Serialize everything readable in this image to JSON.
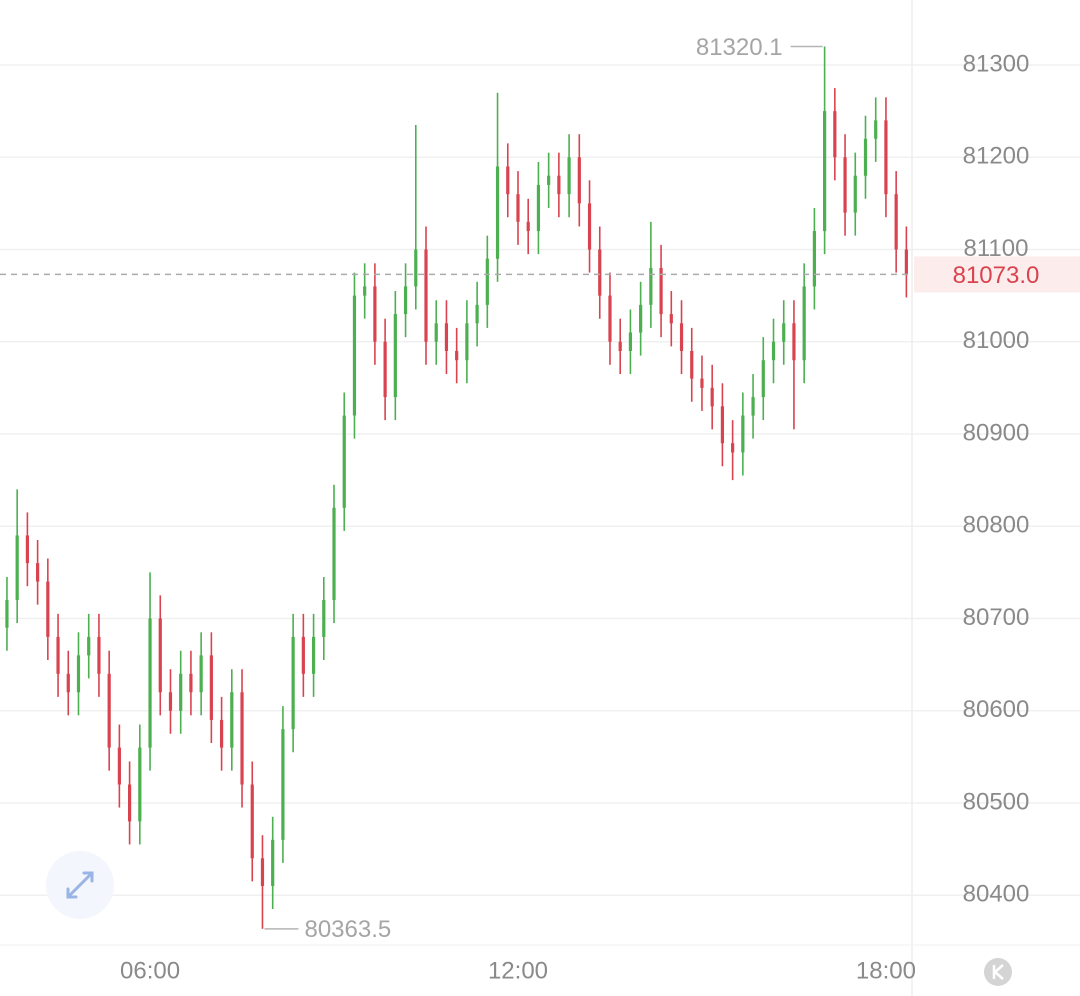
{
  "chart_data": {
    "type": "candlestick",
    "x": [
      220,
      230,
      240,
      250,
      260,
      270,
      280,
      290,
      300,
      310,
      320,
      330,
      340,
      350,
      360,
      370,
      380,
      390,
      400,
      410,
      420,
      430,
      440,
      450,
      460,
      470,
      480,
      490,
      500,
      510,
      520,
      530,
      540,
      550,
      560,
      570,
      580,
      590,
      600,
      610,
      620,
      630,
      640,
      650,
      660,
      670,
      680,
      690,
      700,
      710,
      720,
      730,
      740,
      750,
      760,
      770,
      780,
      790,
      800,
      810,
      820,
      830,
      840,
      850,
      860,
      870,
      880,
      890,
      900,
      910,
      920,
      930,
      940,
      950,
      960,
      970,
      980,
      990,
      1000,
      1010,
      1020,
      1030,
      1040,
      1050,
      1060,
      1070,
      1080,
      1090,
      1100
    ],
    "open": [
      80690,
      80720,
      80790,
      80760,
      80740,
      80680,
      80640,
      80620,
      80660,
      80680,
      80640,
      80560,
      80520,
      80480,
      80560,
      80700,
      80620,
      80600,
      80640,
      80620,
      80660,
      80590,
      80560,
      80620,
      80520,
      80440,
      80410,
      80460,
      80580,
      80680,
      80640,
      80680,
      80720,
      80820,
      80920,
      81050,
      81060,
      81000,
      80940,
      81030,
      81060,
      81100,
      81000,
      81020,
      80990,
      80980,
      81020,
      81040,
      81090,
      81190,
      81160,
      81130,
      81120,
      81170,
      81180,
      81160,
      81200,
      81150,
      81100,
      81050,
      81000,
      80990,
      81010,
      81040,
      81080,
      81030,
      81020,
      80990,
      80960,
      80950,
      80930,
      80890,
      80880,
      80920,
      80940,
      80980,
      81000,
      81020,
      80980,
      81060,
      81120,
      81250,
      81200,
      81140,
      81180,
      81220,
      81240,
      81160,
      81100
    ],
    "high": [
      80745,
      80840,
      80815,
      80785,
      80765,
      80705,
      80665,
      80685,
      80705,
      80705,
      80665,
      80585,
      80545,
      80585,
      80750,
      80725,
      80645,
      80665,
      80665,
      80685,
      80685,
      80615,
      80645,
      80645,
      80545,
      80465,
      80485,
      80605,
      80705,
      80705,
      80705,
      80745,
      80845,
      80945,
      81075,
      81085,
      81085,
      81025,
      81055,
      81085,
      81235,
      81125,
      81045,
      81045,
      81015,
      81045,
      81065,
      81115,
      81270,
      81215,
      81185,
      81155,
      81195,
      81205,
      81205,
      81225,
      81225,
      81175,
      81125,
      81075,
      81025,
      81035,
      81065,
      81130,
      81105,
      81055,
      81045,
      81015,
      80985,
      80975,
      80955,
      80915,
      80945,
      80965,
      81005,
      81025,
      81045,
      81045,
      81085,
      81145,
      81320.1,
      81275,
      81225,
      81205,
      81245,
      81265,
      81265,
      81185,
      81125
    ],
    "low": [
      80665,
      80695,
      80735,
      80715,
      80655,
      80615,
      80595,
      80595,
      80635,
      80615,
      80535,
      80495,
      80455,
      80455,
      80535,
      80595,
      80575,
      80575,
      80595,
      80595,
      80565,
      80535,
      80535,
      80495,
      80415,
      80363.5,
      80385,
      80435,
      80555,
      80615,
      80615,
      80655,
      80695,
      80795,
      80895,
      81025,
      80975,
      80915,
      80915,
      81005,
      81035,
      80975,
      80975,
      80965,
      80955,
      80955,
      80995,
      81015,
      81065,
      81135,
      81105,
      81095,
      81095,
      81145,
      81135,
      81135,
      81125,
      81075,
      81025,
      80975,
      80965,
      80965,
      80985,
      81015,
      81005,
      80995,
      80965,
      80935,
      80925,
      80905,
      80865,
      80850,
      80855,
      80895,
      80915,
      80955,
      80975,
      80905,
      80955,
      81035,
      81095,
      81175,
      81115,
      81115,
      81155,
      81195,
      81135,
      81075,
      81048
    ],
    "close": [
      80720,
      80790,
      80760,
      80740,
      80680,
      80640,
      80620,
      80660,
      80680,
      80640,
      80560,
      80520,
      80480,
      80560,
      80700,
      80620,
      80600,
      80640,
      80620,
      80660,
      80590,
      80560,
      80620,
      80520,
      80440,
      80410,
      80460,
      80580,
      80680,
      80640,
      80680,
      80720,
      80820,
      80920,
      81050,
      81060,
      81000,
      80940,
      81030,
      81060,
      81100,
      81000,
      81020,
      80990,
      80980,
      81020,
      81040,
      81090,
      81190,
      81160,
      81130,
      81120,
      81170,
      81180,
      81160,
      81200,
      81150,
      81100,
      81050,
      81000,
      80990,
      81010,
      81040,
      81080,
      81030,
      81020,
      80990,
      80960,
      80950,
      80930,
      80890,
      80880,
      80920,
      80940,
      80980,
      81000,
      81020,
      80980,
      81060,
      81120,
      81250,
      81200,
      81140,
      81180,
      81220,
      81240,
      81160,
      81100,
      81073.0
    ],
    "up_color": "#4caf50",
    "down_color": "#d9434f",
    "xlim": [
      213.2,
      1105.5
    ],
    "xticks": [
      {
        "value": 360,
        "label": "06:00"
      },
      {
        "value": 720,
        "label": "12:00"
      },
      {
        "value": 1080,
        "label": "18:00"
      }
    ],
    "ylim": [
      80346,
      81370.5
    ],
    "yticks": [
      80400,
      80500,
      80600,
      80700,
      80800,
      80900,
      81000,
      81100,
      81200,
      81300
    ],
    "grid": true,
    "high_label": "81320.1",
    "low_label": "80363.5",
    "last_price": {
      "value": 81073.0,
      "label": "81073.0"
    }
  }
}
